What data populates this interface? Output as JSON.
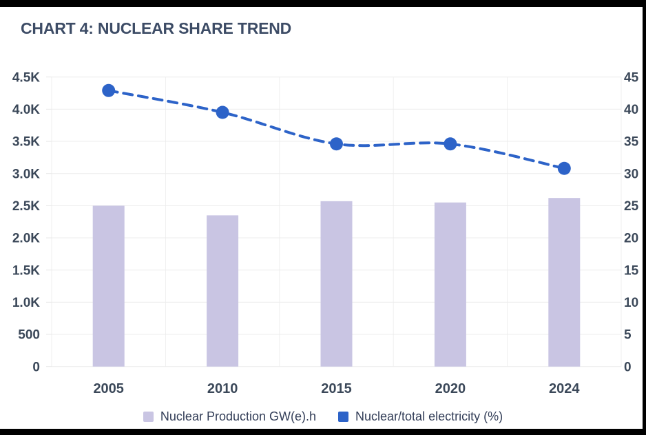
{
  "header": {
    "title": "CHART 4: NUCLEAR SHARE TREND",
    "color": "#3d4c66"
  },
  "chart_data": {
    "type": "bar+line",
    "title": "CHART 4: NUCLEAR SHARE TREND",
    "categories": [
      "2005",
      "2010",
      "2015",
      "2020",
      "2024"
    ],
    "series": [
      {
        "name": "Nuclear Production GW(e).h",
        "type": "bar",
        "axis": "left",
        "color": "#c9c5e3",
        "values": [
          2500,
          2350,
          2570,
          2550,
          2620
        ]
      },
      {
        "name": "Nuclear/total electricity (%)",
        "type": "line",
        "axis": "right",
        "color": "#2d63c8",
        "style": "dashed",
        "marker": "circle",
        "values": [
          42.9,
          39.5,
          34.6,
          34.6,
          30.8
        ]
      }
    ],
    "left_axis": {
      "range": [
        0,
        4500
      ],
      "step": 500,
      "ticks": [
        "0",
        "500",
        "1.0K",
        "1.5K",
        "2.0K",
        "2.5K",
        "3.0K",
        "3.5K",
        "4.0K",
        "4.5K"
      ]
    },
    "right_axis": {
      "range": [
        0,
        45
      ],
      "step": 5,
      "ticks": [
        "0",
        "5",
        "10",
        "15",
        "20",
        "25",
        "30",
        "35",
        "40",
        "45"
      ]
    },
    "grid": true,
    "legend_position": "bottom"
  },
  "legend": {
    "items": [
      {
        "label": "Nuclear Production GW(e).h",
        "color": "#c9c5e3"
      },
      {
        "label": "Nuclear/total electricity (%)",
        "color": "#2d63c8"
      }
    ]
  }
}
